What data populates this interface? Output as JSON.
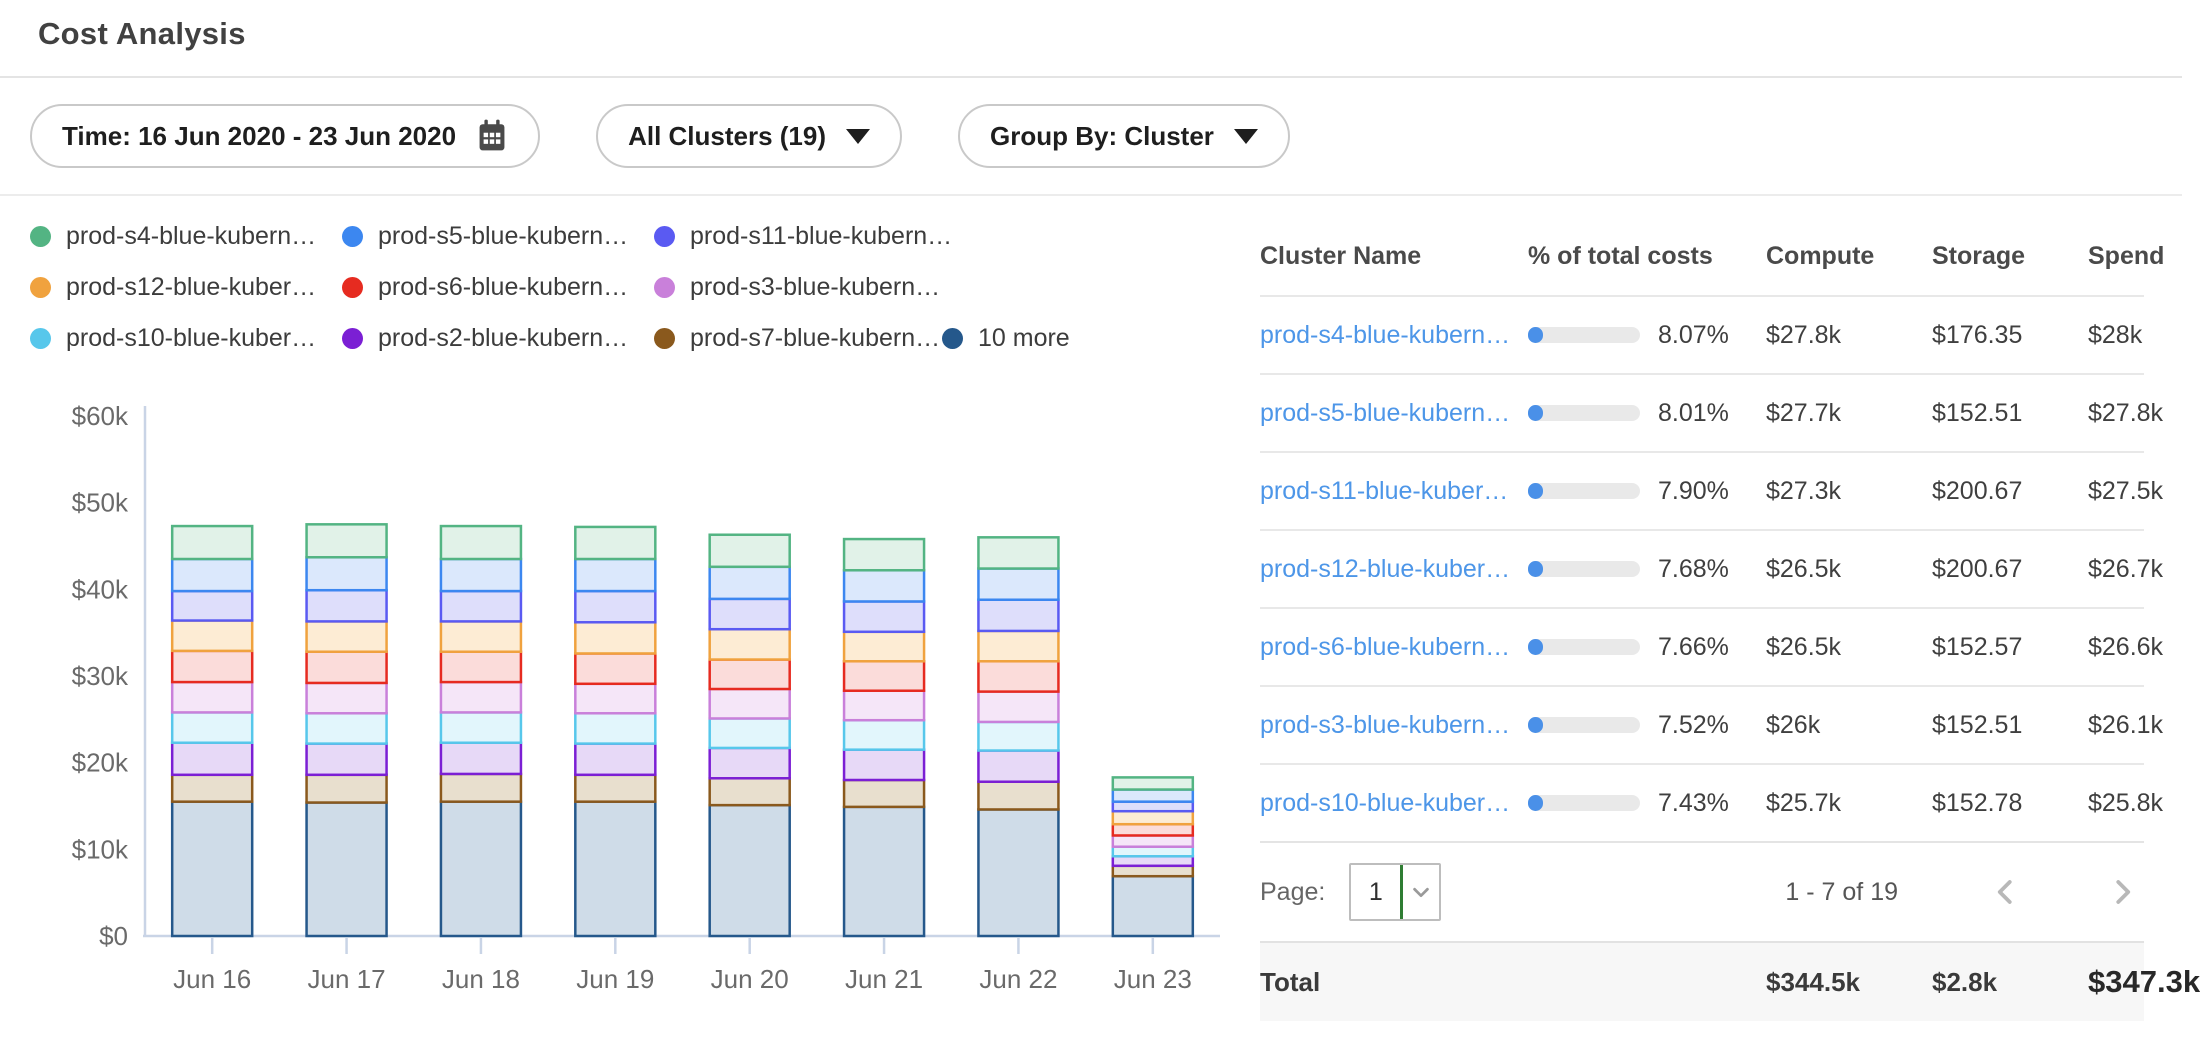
{
  "page": {
    "title": "Cost Analysis"
  },
  "filters": {
    "time": {
      "label": "Time: 16 Jun 2020 - 23 Jun 2020"
    },
    "clusters": {
      "label": "All Clusters (19)"
    },
    "group_by": {
      "label": "Group By: Cluster"
    }
  },
  "chart_data": {
    "type": "bar",
    "stacked": true,
    "title": "",
    "xlabel": "",
    "ylabel": "",
    "x": [
      "Jun 16",
      "Jun 17",
      "Jun 18",
      "Jun 19",
      "Jun 20",
      "Jun 21",
      "Jun 22",
      "Jun 23"
    ],
    "y_tick_labels": [
      "$0",
      "$10k",
      "$20k",
      "$30k",
      "$40k",
      "$50k",
      "$60k"
    ],
    "ylim_k": [
      0,
      60
    ],
    "unit": "USD thousands per day",
    "grid": false,
    "legend_position": "top-left",
    "stack_note": "stacked bottom-to-top in reverse series order ('10 more' is the bottom segment)",
    "series": [
      {
        "name": "prod-s4-blue-kubern…",
        "color": "#53b483",
        "fill": "#e1f2e8",
        "values_k": [
          3.8,
          3.8,
          3.8,
          3.7,
          3.7,
          3.6,
          3.6,
          1.4
        ]
      },
      {
        "name": "prod-s5-blue-kubern…",
        "color": "#3c87f0",
        "fill": "#dbe8fc",
        "values_k": [
          3.7,
          3.8,
          3.7,
          3.7,
          3.7,
          3.6,
          3.6,
          1.4
        ]
      },
      {
        "name": "prod-s11-blue-kubern…",
        "color": "#5a5af2",
        "fill": "#dedefb",
        "values_k": [
          3.4,
          3.6,
          3.5,
          3.6,
          3.5,
          3.5,
          3.6,
          1.1
        ]
      },
      {
        "name": "prod-s12-blue-kuber…",
        "color": "#f0a23e",
        "fill": "#fdecd4",
        "values_k": [
          3.5,
          3.5,
          3.5,
          3.6,
          3.5,
          3.4,
          3.5,
          1.5
        ]
      },
      {
        "name": "prod-s6-blue-kubern…",
        "color": "#e62b20",
        "fill": "#fbdcda",
        "values_k": [
          3.6,
          3.6,
          3.5,
          3.5,
          3.4,
          3.4,
          3.5,
          1.3
        ]
      },
      {
        "name": "prod-s3-blue-kubern…",
        "color": "#c980da",
        "fill": "#f5e6f8",
        "values_k": [
          3.5,
          3.5,
          3.5,
          3.4,
          3.4,
          3.4,
          3.5,
          1.3
        ]
      },
      {
        "name": "prod-s10-blue-kuber…",
        "color": "#57c7eb",
        "fill": "#e2f6fc",
        "values_k": [
          3.5,
          3.5,
          3.5,
          3.5,
          3.4,
          3.4,
          3.3,
          1.1
        ]
      },
      {
        "name": "prod-s2-blue-kubern…",
        "color": "#7b1fd4",
        "fill": "#e7d9f7",
        "values_k": [
          3.7,
          3.6,
          3.6,
          3.6,
          3.5,
          3.5,
          3.6,
          1.1
        ]
      },
      {
        "name": "prod-s7-blue-kubern…",
        "color": "#8a591d",
        "fill": "#e8dfce",
        "values_k": [
          3.1,
          3.2,
          3.2,
          3.1,
          3.1,
          3.1,
          3.2,
          1.2
        ]
      },
      {
        "name": "10 more",
        "color": "#25588b",
        "fill": "#cfdce8",
        "values_k": [
          15.5,
          15.4,
          15.5,
          15.5,
          15.1,
          14.9,
          14.6,
          6.9
        ]
      }
    ]
  },
  "table": {
    "columns": [
      "Cluster Name",
      "% of total costs",
      "Compute",
      "Storage",
      "Spend"
    ],
    "rows": [
      {
        "name": "prod-s4-blue-kubern…",
        "pct_label": "8.07%",
        "pct": 8.07,
        "compute": "$27.8k",
        "storage": "$176.35",
        "spend": "$28k"
      },
      {
        "name": "prod-s5-blue-kubern…",
        "pct_label": "8.01%",
        "pct": 8.01,
        "compute": "$27.7k",
        "storage": "$152.51",
        "spend": "$27.8k"
      },
      {
        "name": "prod-s11-blue-kuber…",
        "pct_label": "7.90%",
        "pct": 7.9,
        "compute": "$27.3k",
        "storage": "$200.67",
        "spend": "$27.5k"
      },
      {
        "name": "prod-s12-blue-kuber…",
        "pct_label": "7.68%",
        "pct": 7.68,
        "compute": "$26.5k",
        "storage": "$200.67",
        "spend": "$26.7k"
      },
      {
        "name": "prod-s6-blue-kubern…",
        "pct_label": "7.66%",
        "pct": 7.66,
        "compute": "$26.5k",
        "storage": "$152.57",
        "spend": "$26.6k"
      },
      {
        "name": "prod-s3-blue-kubern…",
        "pct_label": "7.52%",
        "pct": 7.52,
        "compute": "$26k",
        "storage": "$152.51",
        "spend": "$26.1k"
      },
      {
        "name": "prod-s10-blue-kuber…",
        "pct_label": "7.43%",
        "pct": 7.43,
        "compute": "$25.7k",
        "storage": "$152.78",
        "spend": "$25.8k"
      }
    ],
    "pagination": {
      "label": "Page:",
      "page": "1",
      "range": "1 - 7 of 19"
    },
    "total": {
      "label": "Total",
      "compute": "$344.5k",
      "storage": "$2.8k",
      "spend": "$347.3k"
    }
  },
  "colors": {
    "link": "#4d96e8",
    "progress_fill": "#4a90e8",
    "progress_track": "#e9e9e9",
    "axis": "#c9d4e6",
    "select_accent_green": "#2f7d33"
  }
}
